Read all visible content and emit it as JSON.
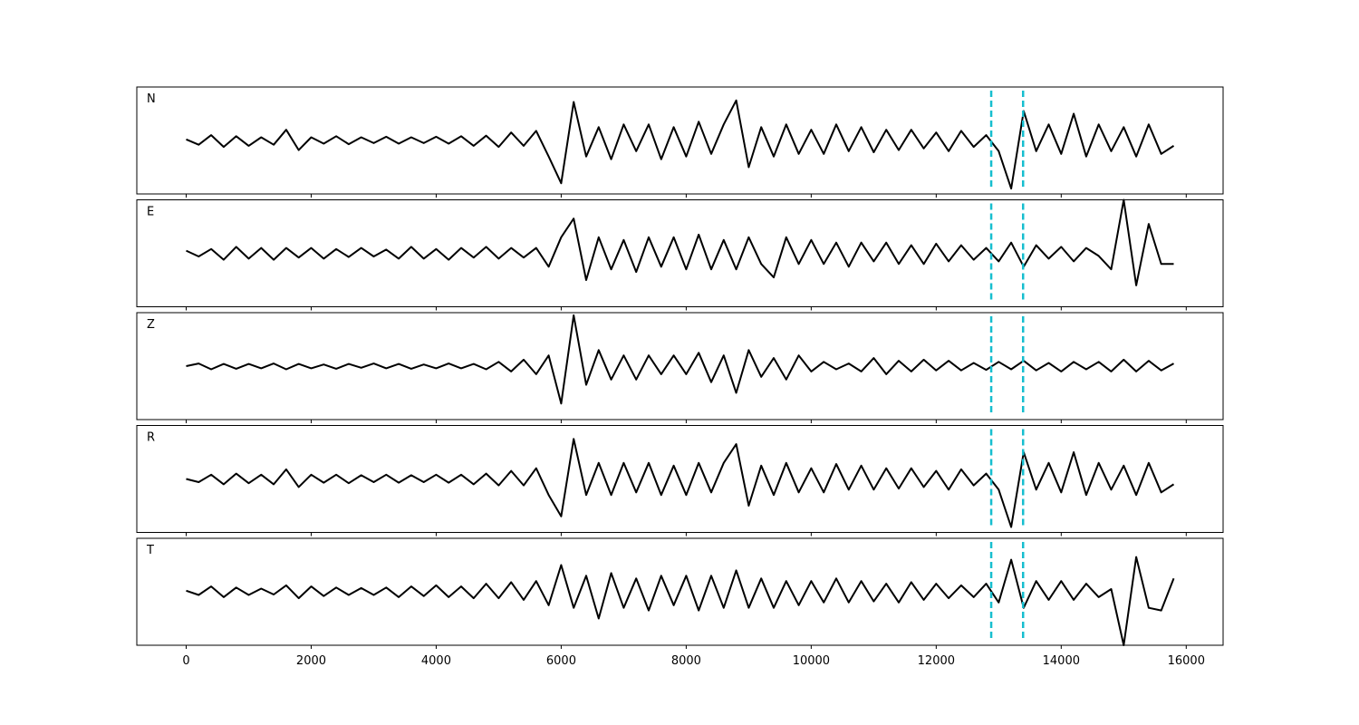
{
  "chart_data": [
    {
      "type": "line",
      "label": "N",
      "color": "#000000",
      "xlim": [
        -790,
        16590
      ],
      "ylim": [
        -1,
        1
      ],
      "xticks": [
        0,
        2000,
        4000,
        6000,
        8000,
        10000,
        12000,
        14000,
        16000
      ],
      "vlines": [
        12880,
        13390
      ],
      "vline_color": "#17becf",
      "x": [
        0,
        200,
        400,
        600,
        800,
        1000,
        1200,
        1400,
        1600,
        1800,
        2000,
        2200,
        2400,
        2600,
        2800,
        3000,
        3200,
        3400,
        3600,
        3800,
        4000,
        4200,
        4400,
        4600,
        4800,
        5000,
        5200,
        5400,
        5600,
        5800,
        6000,
        6200,
        6400,
        6600,
        6800,
        7000,
        7200,
        7400,
        7600,
        7800,
        8000,
        8200,
        8400,
        8600,
        8800,
        9000,
        9200,
        9400,
        9600,
        9800,
        10000,
        10200,
        10400,
        10600,
        10800,
        11000,
        11200,
        11400,
        11600,
        11800,
        12000,
        12200,
        12400,
        12600,
        12800,
        13000,
        13200,
        13400,
        13600,
        13800,
        14000,
        14200,
        14400,
        14600,
        14800,
        15000,
        15200,
        15400,
        15600,
        15800
      ],
      "values": [
        0.02,
        -0.08,
        0.1,
        -0.12,
        0.08,
        -0.1,
        0.06,
        -0.08,
        0.2,
        -0.18,
        0.06,
        -0.06,
        0.08,
        -0.07,
        0.06,
        -0.05,
        0.07,
        -0.06,
        0.06,
        -0.05,
        0.07,
        -0.06,
        0.08,
        -0.1,
        0.09,
        -0.12,
        0.15,
        -0.1,
        0.18,
        -0.3,
        -0.8,
        0.72,
        -0.3,
        0.25,
        -0.35,
        0.3,
        -0.2,
        0.3,
        -0.35,
        0.25,
        -0.3,
        0.35,
        -0.25,
        0.3,
        0.75,
        -0.5,
        0.25,
        -0.3,
        0.3,
        -0.25,
        0.2,
        -0.25,
        0.3,
        -0.2,
        0.25,
        -0.22,
        0.2,
        -0.18,
        0.2,
        -0.15,
        0.15,
        -0.2,
        0.18,
        -0.12,
        0.1,
        -0.2,
        -0.9,
        0.55,
        -0.2,
        0.3,
        -0.25,
        0.5,
        -0.3,
        0.3,
        -0.2,
        0.25,
        -0.3,
        0.3,
        -0.25,
        -0.1
      ]
    },
    {
      "type": "line",
      "label": "E",
      "color": "#000000",
      "xlim": [
        -790,
        16590
      ],
      "ylim": [
        -1,
        1
      ],
      "xticks": [
        0,
        2000,
        4000,
        6000,
        8000,
        10000,
        12000,
        14000,
        16000
      ],
      "vlines": [
        12880,
        13390
      ],
      "vline_color": "#17becf",
      "x": [
        0,
        200,
        400,
        600,
        800,
        1000,
        1200,
        1400,
        1600,
        1800,
        2000,
        2200,
        2400,
        2600,
        2800,
        3000,
        3200,
        3400,
        3600,
        3800,
        4000,
        4200,
        4400,
        4600,
        4800,
        5000,
        5200,
        5400,
        5600,
        5800,
        6000,
        6200,
        6400,
        6600,
        6800,
        7000,
        7200,
        7400,
        7600,
        7800,
        8000,
        8200,
        8400,
        8600,
        8800,
        9000,
        9200,
        9400,
        9600,
        9800,
        10000,
        10200,
        10400,
        10600,
        10800,
        11000,
        11200,
        11400,
        11600,
        11800,
        12000,
        12200,
        12400,
        12600,
        12800,
        13000,
        13200,
        13400,
        13600,
        13800,
        14000,
        14200,
        14400,
        14600,
        14800,
        15000,
        15200,
        15400,
        15600,
        15800
      ],
      "values": [
        0.05,
        -0.06,
        0.08,
        -0.12,
        0.12,
        -0.1,
        0.1,
        -0.12,
        0.1,
        -0.08,
        0.1,
        -0.1,
        0.08,
        -0.07,
        0.1,
        -0.06,
        0.07,
        -0.1,
        0.12,
        -0.1,
        0.08,
        -0.12,
        0.1,
        -0.08,
        0.12,
        -0.1,
        0.1,
        -0.08,
        0.1,
        -0.25,
        0.3,
        0.65,
        -0.5,
        0.3,
        -0.3,
        0.25,
        -0.35,
        0.3,
        -0.25,
        0.3,
        -0.3,
        0.35,
        -0.3,
        0.25,
        -0.3,
        0.3,
        -0.2,
        -0.45,
        0.3,
        -0.2,
        0.25,
        -0.2,
        0.2,
        -0.25,
        0.2,
        -0.15,
        0.2,
        -0.2,
        0.15,
        -0.2,
        0.18,
        -0.15,
        0.15,
        -0.12,
        0.1,
        -0.15,
        0.2,
        -0.25,
        0.15,
        -0.1,
        0.12,
        -0.15,
        0.1,
        -0.05,
        -0.3,
        1.0,
        -0.6,
        0.55,
        -0.2,
        -0.2
      ]
    },
    {
      "type": "line",
      "label": "Z",
      "color": "#000000",
      "xlim": [
        -790,
        16590
      ],
      "ylim": [
        -1,
        1
      ],
      "xticks": [
        0,
        2000,
        4000,
        6000,
        8000,
        10000,
        12000,
        14000,
        16000
      ],
      "vlines": [
        12880,
        13390
      ],
      "vline_color": "#17becf",
      "x": [
        0,
        200,
        400,
        600,
        800,
        1000,
        1200,
        1400,
        1600,
        1800,
        2000,
        2200,
        2400,
        2600,
        2800,
        3000,
        3200,
        3400,
        3600,
        3800,
        4000,
        4200,
        4400,
        4600,
        4800,
        5000,
        5200,
        5400,
        5600,
        5800,
        6000,
        6200,
        6400,
        6600,
        6800,
        7000,
        7200,
        7400,
        7600,
        7800,
        8000,
        8200,
        8400,
        8600,
        8800,
        9000,
        9200,
        9400,
        9600,
        9800,
        10000,
        10200,
        10400,
        10600,
        10800,
        11000,
        11200,
        11400,
        11600,
        11800,
        12000,
        12200,
        12400,
        12600,
        12800,
        13000,
        13200,
        13400,
        13600,
        13800,
        14000,
        14200,
        14400,
        14600,
        14800,
        15000,
        15200,
        15400,
        15600,
        15800
      ],
      "values": [
        0.0,
        0.05,
        -0.06,
        0.04,
        -0.05,
        0.04,
        -0.04,
        0.05,
        -0.06,
        0.04,
        -0.04,
        0.03,
        -0.05,
        0.04,
        -0.03,
        0.05,
        -0.04,
        0.04,
        -0.05,
        0.03,
        -0.04,
        0.05,
        -0.04,
        0.04,
        -0.06,
        0.08,
        -0.1,
        0.12,
        -0.15,
        0.2,
        -0.7,
        0.95,
        -0.35,
        0.3,
        -0.25,
        0.2,
        -0.25,
        0.2,
        -0.15,
        0.2,
        -0.15,
        0.25,
        -0.3,
        0.2,
        -0.5,
        0.3,
        -0.2,
        0.15,
        -0.25,
        0.2,
        -0.1,
        0.08,
        -0.06,
        0.05,
        -0.1,
        0.15,
        -0.15,
        0.1,
        -0.1,
        0.12,
        -0.08,
        0.1,
        -0.08,
        0.06,
        -0.07,
        0.08,
        -0.06,
        0.1,
        -0.08,
        0.06,
        -0.1,
        0.08,
        -0.06,
        0.08,
        -0.1,
        0.12,
        -0.1,
        0.1,
        -0.08,
        0.05
      ]
    },
    {
      "type": "line",
      "label": "R",
      "color": "#000000",
      "xlim": [
        -790,
        16590
      ],
      "ylim": [
        -1,
        1
      ],
      "xticks": [
        0,
        2000,
        4000,
        6000,
        8000,
        10000,
        12000,
        14000,
        16000
      ],
      "vlines": [
        12880,
        13390
      ],
      "vline_color": "#17becf",
      "x": [
        0,
        200,
        400,
        600,
        800,
        1000,
        1200,
        1400,
        1600,
        1800,
        2000,
        2200,
        2400,
        2600,
        2800,
        3000,
        3200,
        3400,
        3600,
        3800,
        4000,
        4200,
        4400,
        4600,
        4800,
        5000,
        5200,
        5400,
        5600,
        5800,
        6000,
        6200,
        6400,
        6600,
        6800,
        7000,
        7200,
        7400,
        7600,
        7800,
        8000,
        8200,
        8400,
        8600,
        8800,
        9000,
        9200,
        9400,
        9600,
        9800,
        10000,
        10200,
        10400,
        10600,
        10800,
        11000,
        11200,
        11400,
        11600,
        11800,
        12000,
        12200,
        12400,
        12600,
        12800,
        13000,
        13200,
        13400,
        13600,
        13800,
        14000,
        14200,
        14400,
        14600,
        14800,
        15000,
        15200,
        15400,
        15600,
        15800
      ],
      "values": [
        0.0,
        -0.06,
        0.08,
        -0.1,
        0.1,
        -0.08,
        0.08,
        -0.1,
        0.18,
        -0.15,
        0.08,
        -0.07,
        0.08,
        -0.08,
        0.07,
        -0.06,
        0.08,
        -0.07,
        0.07,
        -0.06,
        0.08,
        -0.07,
        0.08,
        -0.1,
        0.1,
        -0.12,
        0.15,
        -0.12,
        0.2,
        -0.3,
        -0.7,
        0.75,
        -0.3,
        0.3,
        -0.3,
        0.3,
        -0.25,
        0.3,
        -0.3,
        0.25,
        -0.3,
        0.3,
        -0.25,
        0.3,
        0.65,
        -0.5,
        0.25,
        -0.3,
        0.3,
        -0.25,
        0.2,
        -0.25,
        0.28,
        -0.2,
        0.25,
        -0.2,
        0.2,
        -0.18,
        0.2,
        -0.15,
        0.15,
        -0.2,
        0.18,
        -0.12,
        0.1,
        -0.2,
        -0.9,
        0.5,
        -0.2,
        0.3,
        -0.25,
        0.5,
        -0.3,
        0.3,
        -0.2,
        0.25,
        -0.3,
        0.3,
        -0.25,
        -0.1
      ]
    },
    {
      "type": "line",
      "label": "T",
      "color": "#000000",
      "xlim": [
        -790,
        16590
      ],
      "ylim": [
        -1,
        1
      ],
      "xticks": [
        0,
        2000,
        4000,
        6000,
        8000,
        10000,
        12000,
        14000,
        16000
      ],
      "vlines": [
        12880,
        13390
      ],
      "vline_color": "#17becf",
      "x": [
        0,
        200,
        400,
        600,
        800,
        1000,
        1200,
        1400,
        1600,
        1800,
        2000,
        2200,
        2400,
        2600,
        2800,
        3000,
        3200,
        3400,
        3600,
        3800,
        4000,
        4200,
        4400,
        4600,
        4800,
        5000,
        5200,
        5400,
        5600,
        5800,
        6000,
        6200,
        6400,
        6600,
        6800,
        7000,
        7200,
        7400,
        7600,
        7800,
        8000,
        8200,
        8400,
        8600,
        8800,
        9000,
        9200,
        9400,
        9600,
        9800,
        10000,
        10200,
        10400,
        10600,
        10800,
        11000,
        11200,
        11400,
        11600,
        11800,
        12000,
        12200,
        12400,
        12600,
        12800,
        13000,
        13200,
        13400,
        13600,
        13800,
        14000,
        14200,
        14400,
        14600,
        14800,
        15000,
        15200,
        15400,
        15600,
        15800
      ],
      "values": [
        0.02,
        -0.06,
        0.1,
        -0.1,
        0.08,
        -0.06,
        0.06,
        -0.05,
        0.12,
        -0.12,
        0.1,
        -0.08,
        0.08,
        -0.06,
        0.07,
        -0.06,
        0.08,
        -0.1,
        0.1,
        -0.08,
        0.12,
        -0.1,
        0.1,
        -0.12,
        0.15,
        -0.12,
        0.18,
        -0.15,
        0.2,
        -0.25,
        0.5,
        -0.3,
        0.3,
        -0.5,
        0.35,
        -0.3,
        0.25,
        -0.35,
        0.3,
        -0.25,
        0.3,
        -0.35,
        0.3,
        -0.3,
        0.4,
        -0.3,
        0.25,
        -0.3,
        0.2,
        -0.25,
        0.2,
        -0.2,
        0.25,
        -0.2,
        0.2,
        -0.18,
        0.15,
        -0.2,
        0.18,
        -0.15,
        0.15,
        -0.12,
        0.12,
        -0.1,
        0.15,
        -0.2,
        0.6,
        -0.3,
        0.2,
        -0.15,
        0.2,
        -0.15,
        0.15,
        -0.1,
        0.05,
        -1.0,
        0.65,
        -0.3,
        -0.35,
        0.25
      ]
    }
  ]
}
